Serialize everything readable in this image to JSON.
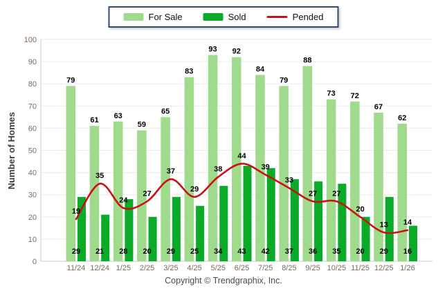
{
  "footer": {
    "copyright": "Copyright © Trendgraphix, Inc."
  },
  "chart_data": {
    "type": "bar+line",
    "categories": [
      "11/24",
      "12/24",
      "1/25",
      "2/25",
      "3/25",
      "4/25",
      "5/25",
      "6/25",
      "7/25",
      "8/25",
      "9/25",
      "10/25",
      "11/25",
      "12/25",
      "1/26"
    ],
    "series": [
      {
        "name": "For Sale",
        "type": "bar",
        "color": "#A0DA8C",
        "values": [
          79,
          61,
          63,
          59,
          65,
          83,
          93,
          92,
          84,
          79,
          88,
          73,
          72,
          67,
          62
        ]
      },
      {
        "name": "Sold",
        "type": "bar",
        "color": "#0AAB28",
        "values": [
          29,
          21,
          28,
          20,
          29,
          25,
          34,
          43,
          42,
          37,
          36,
          35,
          20,
          29,
          16
        ]
      },
      {
        "name": "Pended",
        "type": "line",
        "color": "#CA1212",
        "values": [
          19,
          35,
          24,
          27,
          37,
          29,
          38,
          44,
          39,
          33,
          27,
          27,
          20,
          13,
          14
        ]
      }
    ],
    "title": "",
    "xlabel": "",
    "ylabel": "Number of Homes",
    "ylim": [
      0,
      100
    ],
    "ytick_step": 10,
    "grid": true,
    "legend_position": "top-center",
    "colors": {
      "axis_tick_text": "#7B6A58",
      "gridline": "#EAEAEA",
      "axis_line": "#C8C8C8",
      "value_label": "#000000",
      "legend_border": "#2F4C6E"
    }
  }
}
